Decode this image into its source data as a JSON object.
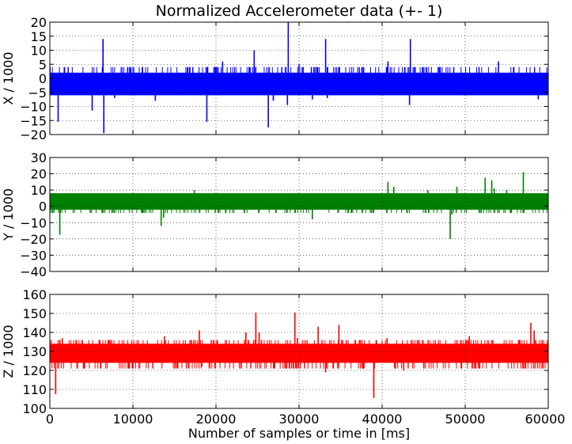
{
  "chart_data": {
    "title": "Normalized Accelerometer data (+- 1)",
    "xlabel": "Number of samples or time in [ms]",
    "xlim": [
      0,
      60000
    ],
    "xticks": [
      "0",
      "10000",
      "20000",
      "30000",
      "40000",
      "50000",
      "60000"
    ],
    "grid": true,
    "panels": [
      {
        "type": "line",
        "ylabel": "X / 1000",
        "ylim": [
          -20,
          20
        ],
        "yticks": [
          "20",
          "15",
          "10",
          "5",
          "0",
          "−5",
          "−10",
          "−15",
          "−20"
        ],
        "color": "#0000ff",
        "band": [
          -6,
          2
        ],
        "noise": {
          "center": -2,
          "amplitude": 4,
          "extremes": [
            -6,
            4
          ]
        },
        "spikes": [
          [
            1000,
            -15.5
          ],
          [
            5100,
            -11.5
          ],
          [
            6400,
            14
          ],
          [
            6500,
            -19.5
          ],
          [
            7800,
            -7
          ],
          [
            12700,
            -8
          ],
          [
            18900,
            -15.5
          ],
          [
            20800,
            6
          ],
          [
            24600,
            10
          ],
          [
            26300,
            -17.5
          ],
          [
            26900,
            -8
          ],
          [
            28700,
            20
          ],
          [
            28600,
            -9.5
          ],
          [
            30000,
            5
          ],
          [
            31600,
            -7.5
          ],
          [
            33200,
            14
          ],
          [
            33400,
            -7
          ],
          [
            40700,
            6
          ],
          [
            43400,
            14
          ],
          [
            43300,
            -9.5
          ],
          [
            54000,
            6
          ],
          [
            58800,
            -7.5
          ]
        ]
      },
      {
        "type": "line",
        "ylabel": "Y / 1000",
        "ylim": [
          -40,
          30
        ],
        "yticks": [
          "30",
          "20",
          "10",
          "0",
          "−10",
          "−20",
          "−30",
          "−40"
        ],
        "color": "#008000",
        "band": [
          -2,
          8
        ],
        "noise": {
          "center": 3,
          "amplitude": 5,
          "extremes": [
            -4,
            8
          ]
        },
        "spikes": [
          [
            1200,
            -17.5
          ],
          [
            13400,
            -12
          ],
          [
            13700,
            -7
          ],
          [
            17400,
            10
          ],
          [
            31600,
            -8
          ],
          [
            40700,
            15
          ],
          [
            41400,
            12
          ],
          [
            45500,
            10
          ],
          [
            48200,
            -20
          ],
          [
            48400,
            -5
          ],
          [
            49000,
            12
          ],
          [
            52400,
            17.5
          ],
          [
            53200,
            16
          ],
          [
            53500,
            11
          ],
          [
            55000,
            10
          ],
          [
            57000,
            21
          ]
        ]
      },
      {
        "type": "line",
        "ylabel": "Z / 1000",
        "ylim": [
          100,
          160
        ],
        "yticks": [
          "160",
          "150",
          "140",
          "130",
          "120",
          "110",
          "100"
        ],
        "color": "#ff0000",
        "band": [
          124,
          134
        ],
        "noise": {
          "center": 129,
          "amplitude": 6,
          "extremes": [
            121,
            136
          ]
        },
        "spikes": [
          [
            700,
            107.5
          ],
          [
            1500,
            137
          ],
          [
            8000,
            132
          ],
          [
            13800,
            138
          ],
          [
            18000,
            141
          ],
          [
            18300,
            122
          ],
          [
            23600,
            140
          ],
          [
            24800,
            150.5
          ],
          [
            25200,
            140
          ],
          [
            29500,
            150.5
          ],
          [
            29800,
            137
          ],
          [
            32300,
            143
          ],
          [
            33200,
            119
          ],
          [
            34800,
            144
          ],
          [
            39000,
            105.5
          ],
          [
            40600,
            137
          ],
          [
            42600,
            120
          ],
          [
            50500,
            138
          ],
          [
            57900,
            145
          ],
          [
            58300,
            141
          ]
        ]
      }
    ]
  }
}
